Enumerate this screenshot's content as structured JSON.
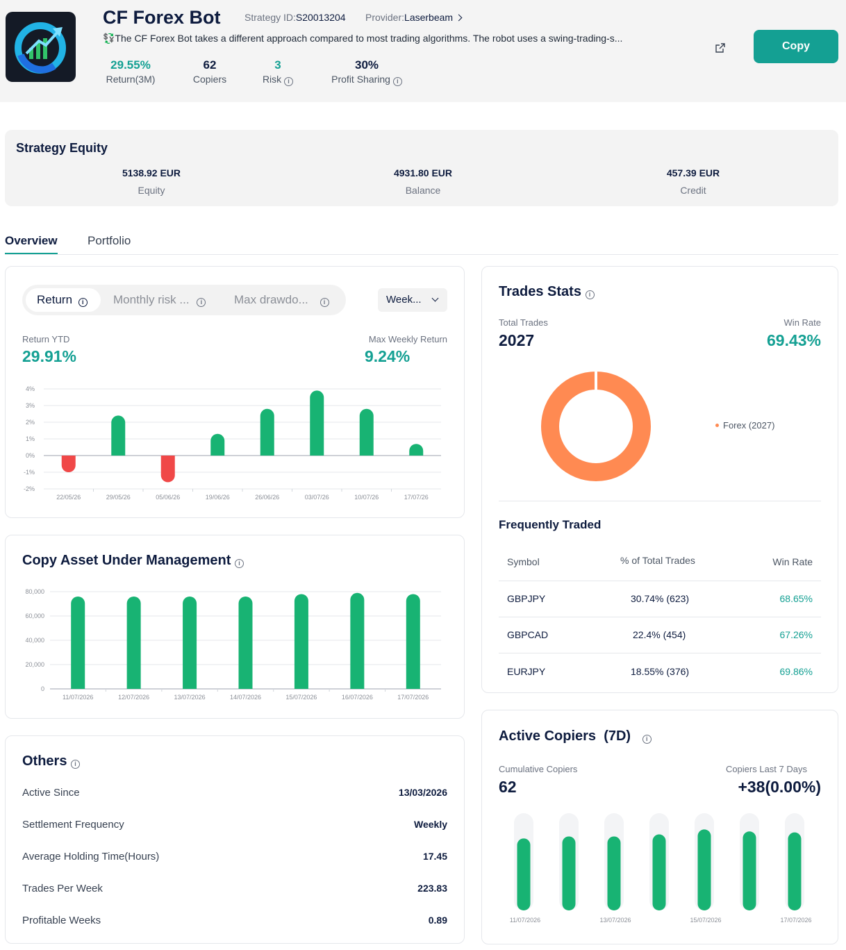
{
  "header": {
    "title": "CF Forex Bot",
    "strategy_id_label": "Strategy ID:",
    "strategy_id": "S20013204",
    "provider_label": "Provider:",
    "provider": "Laserbeam",
    "description": "💱The CF Forex Bot takes a different approach compared to most trading algorithms. The robot uses a swing-trading-s...",
    "copy_label": "Copy",
    "stats": [
      {
        "value": "29.55%",
        "label": "Return(3M)"
      },
      {
        "value": "62",
        "label": "Copiers"
      },
      {
        "value": "3",
        "label": "Risk"
      },
      {
        "value": "30%",
        "label": "Profit Sharing"
      }
    ]
  },
  "equity": {
    "title": "Strategy Equity",
    "items": [
      {
        "value": "5138.92 EUR",
        "label": "Equity"
      },
      {
        "value": "4931.80 EUR",
        "label": "Balance"
      },
      {
        "value": "457.39 EUR",
        "label": "Credit"
      }
    ]
  },
  "tabs": [
    "Overview",
    "Portfolio"
  ],
  "return_card": {
    "segments": [
      "Return",
      "Monthly risk ...",
      "Max drawdo..."
    ],
    "period": "Week...",
    "ytd_label": "Return YTD",
    "ytd_value": "29.91%",
    "max_label": "Max Weekly Return",
    "max_value": "9.24%"
  },
  "aum_card": {
    "title": "Copy Asset Under Management"
  },
  "others": {
    "title": "Others",
    "rows": [
      {
        "label": "Active Since",
        "value": "13/03/2026"
      },
      {
        "label": "Settlement Frequency",
        "value": "Weekly"
      },
      {
        "label": "Average Holding Time(Hours)",
        "value": "17.45"
      },
      {
        "label": "Trades Per Week",
        "value": "223.83"
      },
      {
        "label": "Profitable Weeks",
        "value": "0.89"
      }
    ]
  },
  "trades_stats": {
    "title": "Trades Stats",
    "total_label": "Total Trades",
    "total_value": "2027",
    "win_label": "Win Rate",
    "win_value": "69.43%",
    "legend": "Forex (2027)",
    "freq_title": "Frequently Traded",
    "columns": [
      "Symbol",
      "% of Total Trades",
      "Win Rate"
    ],
    "rows": [
      {
        "symbol": "GBPJPY",
        "pct": "30.74% (623)",
        "win": "68.65%"
      },
      {
        "symbol": "GBPCAD",
        "pct": "22.4% (454)",
        "win": "67.26%"
      },
      {
        "symbol": "EURJPY",
        "pct": "18.55% (376)",
        "win": "69.86%"
      }
    ]
  },
  "copiers": {
    "title": "Active Copiers",
    "period": "(7D)",
    "cum_label": "Cumulative Copiers",
    "cum_value": "62",
    "last_label": "Copiers Last 7 Days",
    "last_value": "+38(0.00%)"
  },
  "colors": {
    "teal": "#14a093",
    "green": "#18b373",
    "red": "#f04848",
    "orange": "#ff8a52"
  },
  "chart_data": [
    {
      "type": "bar",
      "name": "weekly-return",
      "categories": [
        "22/05/26",
        "29/05/26",
        "05/06/26",
        "19/06/26",
        "26/06/26",
        "03/07/26",
        "10/07/26",
        "17/07/26"
      ],
      "values": [
        -1.0,
        2.4,
        -1.6,
        1.3,
        2.8,
        3.9,
        2.8,
        0.7
      ],
      "yticks": [
        "4%",
        "3%",
        "2%",
        "1%",
        "0%",
        "-1%",
        "-2%"
      ],
      "ylim": [
        -2,
        4
      ]
    },
    {
      "type": "bar",
      "name": "copy-aum",
      "categories": [
        "11/07/2026",
        "12/07/2026",
        "13/07/2026",
        "14/07/2026",
        "15/07/2026",
        "16/07/2026",
        "17/07/2026"
      ],
      "values": [
        76000,
        76000,
        76000,
        76000,
        78000,
        79000,
        78000
      ],
      "yticks": [
        "80,000",
        "60,000",
        "40,000",
        "20,000",
        "0"
      ],
      "ylim": [
        0,
        80000
      ]
    },
    {
      "type": "pie",
      "name": "trades-by-asset",
      "labels": [
        "Forex"
      ],
      "values": [
        2027
      ]
    },
    {
      "type": "bar",
      "name": "active-copiers",
      "categories": [
        "11/07/2026",
        "12/07/2026",
        "13/07/2026",
        "14/07/2026",
        "15/07/2026",
        "16/07/2026",
        "17/07/2026"
      ],
      "tick_labels": [
        "11/07/2026",
        "",
        "13/07/2026",
        "",
        "15/07/2026",
        "",
        "17/07/2026"
      ],
      "values": [
        0.72,
        0.74,
        0.74,
        0.76,
        0.81,
        0.79,
        0.78
      ]
    }
  ]
}
